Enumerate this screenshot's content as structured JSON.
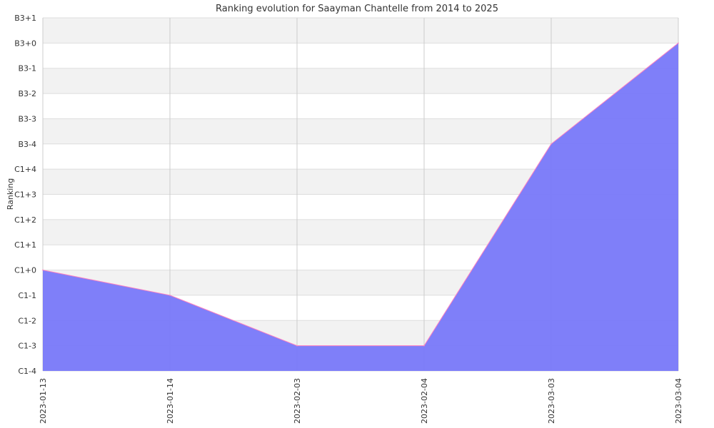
{
  "chart_data": {
    "type": "area",
    "title": "Ranking evolution for Saayman Chantelle from 2014 to 2025",
    "xlabel": "",
    "ylabel": "Ranking",
    "categories": [
      "2023-01-13",
      "2023-01-14",
      "2023-02-03",
      "2023-02-04",
      "2023-03-03",
      "2023-03-04"
    ],
    "y_ticks": [
      "C1-4",
      "C1-3",
      "C1-2",
      "C1-1",
      "C1+0",
      "C1+1",
      "C1+2",
      "C1+3",
      "C1+4",
      "B3-4",
      "B3-3",
      "B3-2",
      "B3-1",
      "B3+0",
      "B3+1"
    ],
    "series": [
      {
        "values": [
          "C1+0",
          "C1-1",
          "C1-3",
          "C1-3",
          "B3-4",
          "B3+0"
        ]
      }
    ],
    "grid": true,
    "colors": {
      "fill": "#7b7bf9",
      "line": "#ff80c0",
      "band": "#f2f2f2",
      "grid": "#cccccc"
    }
  }
}
